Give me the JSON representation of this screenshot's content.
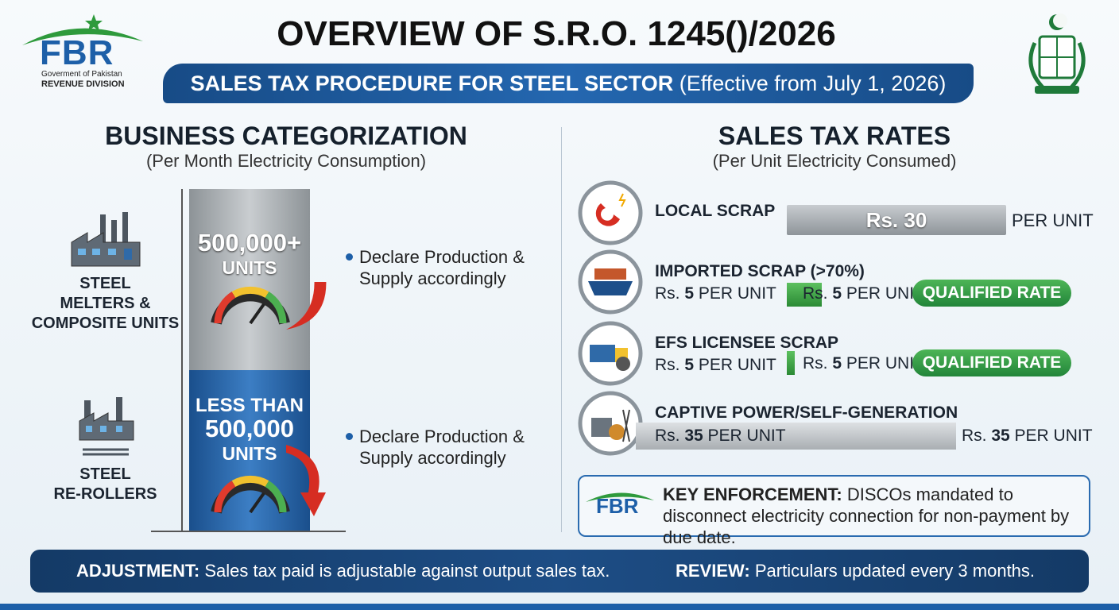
{
  "header": {
    "logo_text": "FBR",
    "logo_line1": "Goverment of Pakistan",
    "logo_line2": "REVENUE DIVISION",
    "title": "OVERVIEW OF S.R.O. 1245()/2026",
    "subtitle": "SALES TAX PROCEDURE FOR STEEL SECTOR",
    "subtitle_note": "(Effective from July 1, 2026)"
  },
  "categorization": {
    "heading": "BUSINESS CATEGORIZATION",
    "subheading": "(Per Month Electricity Consumption)",
    "groups": [
      {
        "label": [
          "STEEL",
          "MELTERS &",
          "COMPOSITE UNITS"
        ],
        "threshold": [
          "500,000+"
        ],
        "unit": "UNITS",
        "note": [
          "Declare Production &",
          "Supply accordingly"
        ]
      },
      {
        "label": [
          "STEEL",
          "RE-ROLLERS"
        ],
        "threshold": [
          "LESS THAN",
          "500,000"
        ],
        "unit": "UNITS",
        "note": [
          "Declare Production &",
          "Supply accordingly"
        ]
      }
    ]
  },
  "rates": {
    "heading": "SALES TAX RATES",
    "subheading": "(Per Unit Electricity Consumed)",
    "rows": [
      {
        "name": "LOCAL SCRAP",
        "bar_text": "Rs. 30",
        "suffix": "PER UNIT"
      },
      {
        "name": "IMPORTED SCRAP (>70%)",
        "left": {
          "prefix": "Rs.",
          "amount": "5",
          "unit": "PER UNIT"
        },
        "right": {
          "prefix": "Rs.",
          "amount": "5",
          "unit": "PER UNIT"
        },
        "badge": "QUALIFIED RATE"
      },
      {
        "name": "EFS LICENSEE SCRAP",
        "left": {
          "prefix": "Rs.",
          "amount": "5",
          "unit": "PER UNIT"
        },
        "right": {
          "prefix": "Rs.",
          "amount": "5",
          "unit": "PER UNIT"
        },
        "badge": "QUALIFIED RATE"
      },
      {
        "name": "CAPTIVE POWER/SELF-GENERATION",
        "left": {
          "prefix": "Rs.",
          "amount": "35",
          "unit": "PER UNIT"
        },
        "right": {
          "prefix": "Rs.",
          "amount": "35",
          "unit": "PER UNIT"
        }
      }
    ]
  },
  "enforcement": {
    "logo_text": "FBR",
    "label": "KEY ENFORCEMENT:",
    "text": "DISCOs mandated to disconnect electricity connection for non-payment by due date."
  },
  "footer": {
    "adjustment_label": "ADJUSTMENT:",
    "adjustment_text": "Sales tax paid is adjustable against output sales tax.",
    "review_label": "REVIEW:",
    "review_text": "Particulars updated every 3 months."
  }
}
